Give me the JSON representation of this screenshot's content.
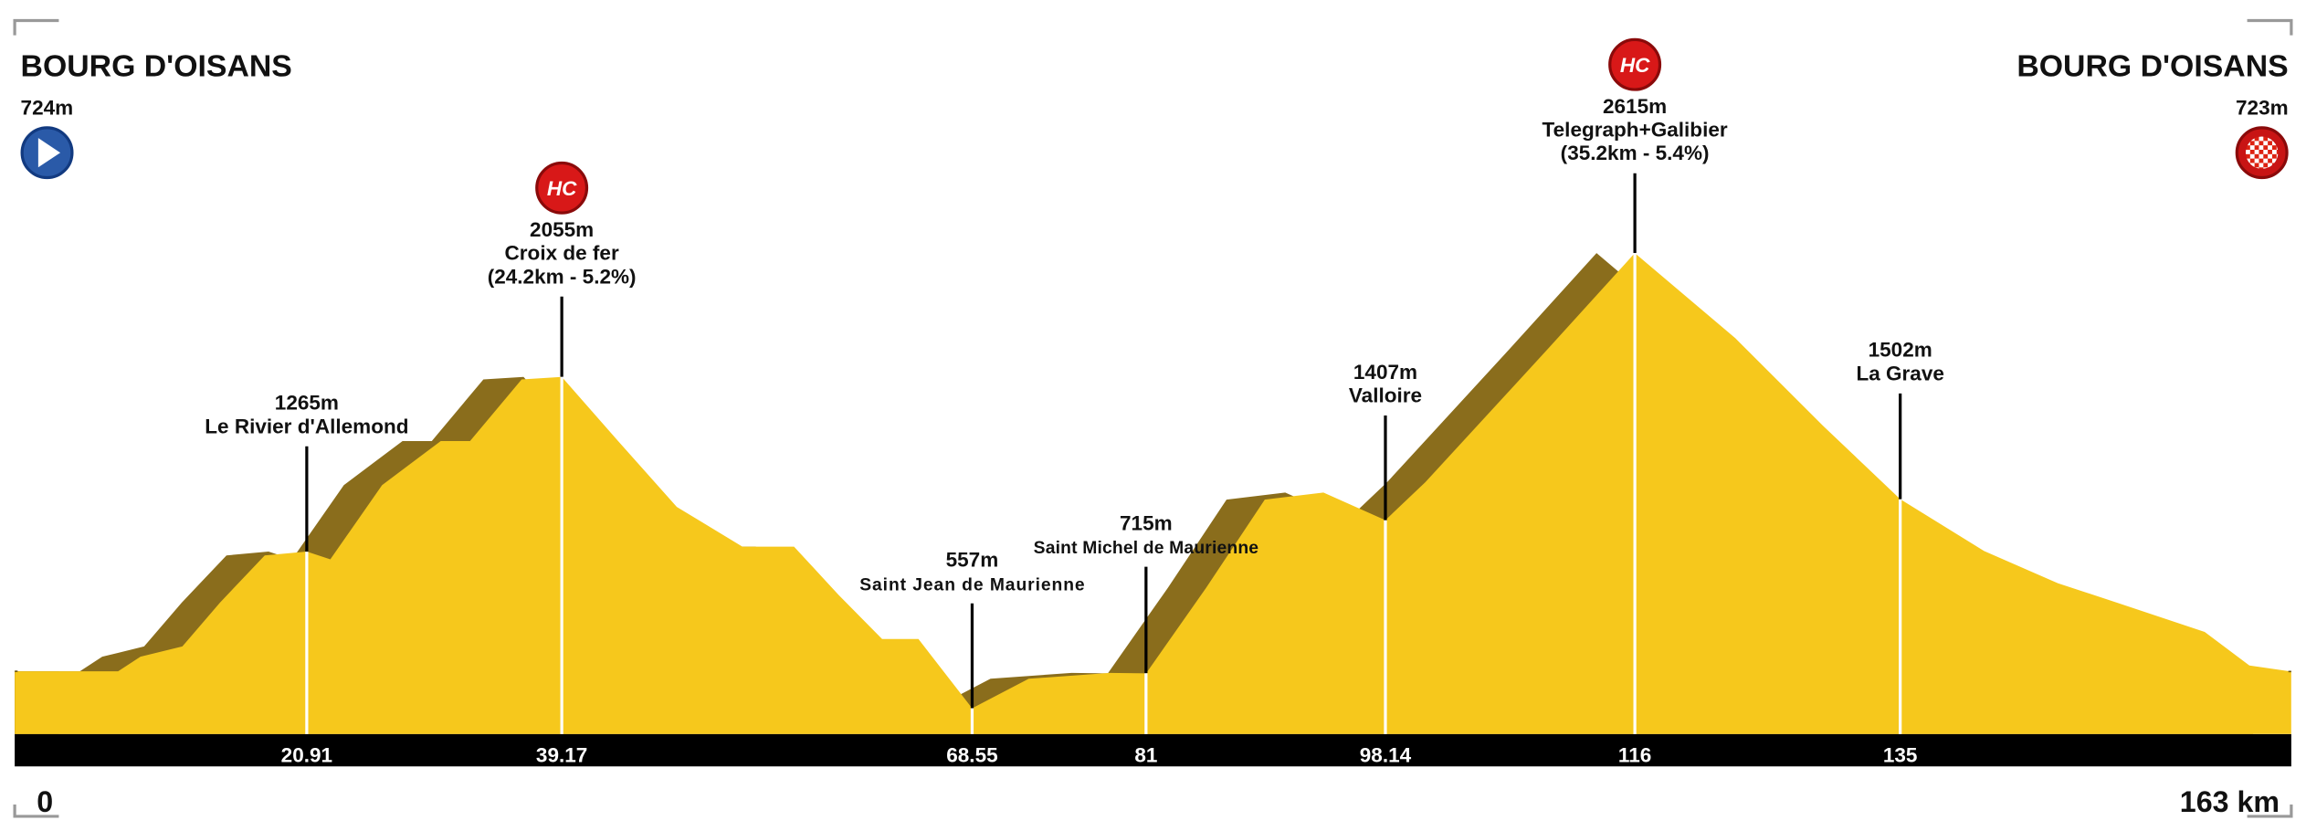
{
  "chart_data": {
    "type": "elevation-profile",
    "start": {
      "name": "BOURG D'OISANS",
      "value": 724,
      "value_label": "724m"
    },
    "finish": {
      "name": "BOURG D'OISANS",
      "value": 723,
      "value_label": "723m"
    },
    "x": [
      0,
      7.4,
      9,
      12,
      14.7,
      17.9,
      20.91,
      22.6,
      26.3,
      30.5,
      32.6,
      36.3,
      39.17,
      43.2,
      47.4,
      52.1,
      55.8,
      59,
      62.1,
      64.7,
      68.55,
      72.6,
      78.4,
      81,
      85.3,
      89.5,
      93.7,
      98.14,
      101,
      109.5,
      116,
      123.2,
      129.5,
      135,
      141,
      146.3,
      150.5,
      156.8,
      160,
      163
    ],
    "values": [
      724,
      724,
      790,
      836,
      1035,
      1248,
      1265,
      1230,
      1566,
      1765,
      1765,
      2044,
      2055,
      1765,
      1467,
      1288,
      1288,
      1069,
      870,
      870,
      557,
      690,
      717,
      715,
      1101,
      1500,
      1532,
      1407,
      1579,
      2163,
      2615,
      2230,
      1832,
      1502,
      1268,
      1122,
      1035,
      902,
      750,
      723
    ],
    "color": "#f6c81c",
    "shadow_color": "#8a6d1c",
    "waypoints": [
      {
        "x": 20.91,
        "value": 1265,
        "value_label": "1265m",
        "name": "Le Rivier d'Allemond"
      },
      {
        "x": 39.17,
        "value": 2055,
        "value_label": "2055m",
        "name": "Croix de fer",
        "detail": "(24.2km  - 5.2%)",
        "category": "HC"
      },
      {
        "x": 68.55,
        "value": 557,
        "value_label": "557m",
        "name": "Saint Jean de Maurienne"
      },
      {
        "x": 81,
        "value": 715,
        "value_label": "715m",
        "name": "Saint Michel de Maurienne"
      },
      {
        "x": 98.14,
        "value": 1407,
        "value_label": "1407m",
        "name": "Valloire"
      },
      {
        "x": 116,
        "value": 2615,
        "value_label": "2615m",
        "name": "Telegraph+Galibier",
        "detail": "(35.2km - 5.4%)",
        "category": "HC"
      },
      {
        "x": 135,
        "value": 1502,
        "value_label": "1502m",
        "name": "La Grave"
      }
    ],
    "xlim": [
      0,
      163
    ],
    "xticks": [
      0,
      {
        "value": 163,
        "label": "163 km"
      }
    ],
    "ylim": [
      440,
      3600
    ]
  }
}
